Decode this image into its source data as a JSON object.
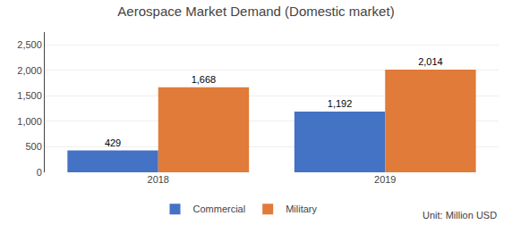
{
  "chart_data": {
    "type": "bar",
    "title": "Aerospace Market Demand (Domestic market)",
    "categories": [
      "2018",
      "2019"
    ],
    "series": [
      {
        "name": "Commercial",
        "color": "#4472c4",
        "values": [
          429,
          1192
        ],
        "value_labels": [
          "429",
          "1,192"
        ]
      },
      {
        "name": "Military",
        "color": "#e07b39",
        "values": [
          1668,
          2014
        ],
        "value_labels": [
          "1,668",
          "2,014"
        ]
      }
    ],
    "ylim": [
      0,
      2750
    ],
    "yticks": [
      0,
      500,
      {
        "value": 1000,
        "label": "1,000"
      },
      {
        "value": 1500,
        "label": "1,500"
      },
      {
        "value": 2000,
        "label": "2,000"
      },
      {
        "value": 2500,
        "label": "2,500"
      }
    ],
    "grid": true,
    "legend": "bottom",
    "data_labels": true,
    "annotations": [
      "Unit: Million USD"
    ]
  }
}
